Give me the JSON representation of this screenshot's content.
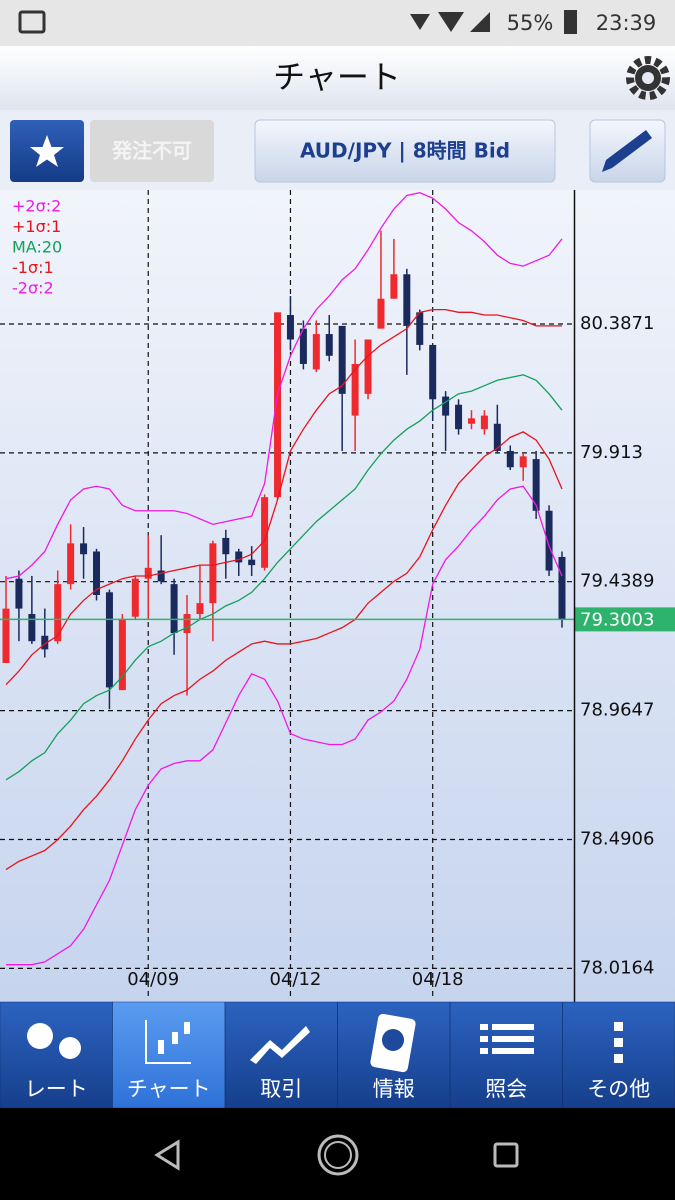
{
  "status_bar": {
    "battery": "55%",
    "time": "23:39"
  },
  "header": {
    "title": "チャート"
  },
  "toolbar": {
    "order_button": "発注不可",
    "symbol_button": "AUD/JPY | 8時間 Bid"
  },
  "chart_data": {
    "type": "candlestick",
    "categories": [
      null,
      null,
      null,
      null,
      null,
      null,
      null,
      null,
      null,
      null,
      null,
      "04/09",
      null,
      null,
      null,
      null,
      null,
      null,
      null,
      null,
      null,
      null,
      "04/12",
      null,
      null,
      null,
      null,
      null,
      null,
      null,
      null,
      null,
      null,
      "04/18",
      null,
      null,
      null,
      null,
      null,
      null,
      null,
      null,
      null,
      null
    ],
    "open": [
      79.14,
      79.45,
      79.32,
      79.24,
      79.22,
      79.43,
      79.58,
      79.55,
      79.4,
      79.04,
      79.31,
      79.45,
      79.48,
      79.43,
      79.25,
      79.32,
      79.36,
      79.6,
      79.55,
      79.52,
      79.49,
      79.75,
      80.42,
      80.37,
      80.22,
      80.35,
      80.38,
      80.05,
      80.13,
      80.37,
      80.48,
      80.57,
      80.43,
      80.31,
      80.12,
      80.09,
      80.02,
      80.0,
      80.02,
      79.92,
      79.86,
      79.89,
      79.7,
      79.53
    ],
    "high": [
      79.46,
      79.48,
      79.46,
      79.34,
      79.48,
      79.65,
      79.64,
      79.56,
      79.41,
      79.32,
      79.46,
      79.61,
      79.61,
      79.45,
      79.39,
      79.5,
      79.59,
      79.63,
      79.56,
      79.57,
      79.76,
      80.43,
      80.49,
      80.4,
      80.4,
      80.42,
      80.38,
      80.33,
      80.33,
      80.73,
      80.7,
      80.59,
      80.44,
      80.31,
      80.14,
      80.11,
      80.07,
      80.07,
      80.09,
      79.94,
      79.91,
      79.92,
      79.72,
      79.55
    ],
    "low": [
      79.14,
      79.22,
      79.21,
      79.16,
      79.21,
      79.41,
      79.45,
      79.37,
      78.97,
      79.04,
      79.3,
      79.3,
      79.43,
      79.17,
      79.02,
      79.3,
      79.22,
      79.45,
      79.46,
      79.46,
      79.48,
      79.74,
      80.29,
      80.22,
      80.21,
      80.25,
      79.92,
      79.92,
      80.11,
      80.37,
      80.48,
      80.2,
      80.29,
      80.03,
      79.92,
      79.98,
      80.0,
      79.98,
      79.91,
      79.85,
      79.81,
      79.67,
      79.46,
      79.27
    ],
    "close": [
      79.34,
      79.34,
      79.22,
      79.19,
      79.43,
      79.58,
      79.54,
      79.39,
      79.05,
      79.3,
      79.45,
      79.49,
      79.44,
      79.25,
      79.32,
      79.36,
      79.58,
      79.54,
      79.51,
      79.5,
      79.75,
      80.43,
      80.33,
      80.24,
      80.35,
      80.27,
      80.13,
      80.24,
      80.33,
      80.48,
      80.57,
      80.38,
      80.31,
      80.11,
      80.05,
      80.0,
      80.04,
      80.05,
      79.92,
      79.86,
      79.9,
      79.7,
      79.48,
      79.3
    ],
    "up_color": "#ee2a2f",
    "down_color": "#1b2a5c",
    "series": [
      {
        "name": "+2σ:2",
        "color": "#f019e6",
        "values": [
          79.45,
          79.46,
          79.5,
          79.55,
          79.65,
          79.74,
          79.78,
          79.79,
          79.78,
          79.72,
          79.7,
          79.7,
          79.7,
          79.7,
          79.69,
          79.67,
          79.65,
          79.66,
          79.67,
          79.68,
          79.8,
          80.13,
          80.27,
          80.37,
          80.44,
          80.49,
          80.55,
          80.59,
          80.66,
          80.74,
          80.81,
          80.86,
          80.87,
          80.85,
          80.81,
          80.76,
          80.73,
          80.69,
          80.64,
          80.61,
          80.6,
          80.62,
          80.64,
          80.7
        ]
      },
      {
        "name": "+1σ:1",
        "color": "#e8141e",
        "values": [
          79.06,
          79.11,
          79.17,
          79.21,
          79.24,
          79.32,
          79.37,
          79.41,
          79.43,
          79.45,
          79.46,
          79.46,
          79.47,
          79.48,
          79.49,
          79.5,
          79.5,
          79.51,
          79.52,
          79.54,
          79.59,
          79.74,
          79.92,
          80.0,
          80.07,
          80.13,
          80.16,
          80.22,
          80.27,
          80.31,
          80.34,
          80.37,
          80.43,
          80.44,
          80.44,
          80.43,
          80.43,
          80.42,
          80.42,
          80.41,
          80.4,
          80.38,
          80.38,
          80.38
        ]
      },
      {
        "name": "MA:20",
        "color": "#14a05a",
        "values": [
          78.71,
          78.74,
          78.78,
          78.81,
          78.88,
          78.93,
          78.99,
          79.02,
          79.04,
          79.09,
          79.15,
          79.2,
          79.22,
          79.25,
          79.27,
          79.3,
          79.32,
          79.35,
          79.37,
          79.4,
          79.45,
          79.51,
          79.56,
          79.61,
          79.66,
          79.7,
          79.74,
          79.78,
          79.85,
          79.91,
          79.96,
          80.0,
          80.03,
          80.07,
          80.1,
          80.13,
          80.14,
          80.16,
          80.18,
          80.19,
          80.2,
          80.18,
          80.13,
          80.07
        ]
      },
      {
        "name": "-1σ:1",
        "color": "#e8141e",
        "values": [
          78.38,
          78.41,
          78.43,
          78.45,
          78.49,
          78.54,
          78.6,
          78.65,
          78.71,
          78.78,
          78.86,
          78.93,
          78.99,
          79.02,
          79.04,
          79.08,
          79.11,
          79.15,
          79.18,
          79.21,
          79.22,
          79.21,
          79.21,
          79.22,
          79.23,
          79.25,
          79.27,
          79.3,
          79.36,
          79.4,
          79.44,
          79.47,
          79.53,
          79.63,
          79.72,
          79.8,
          79.85,
          79.9,
          79.93,
          79.97,
          79.99,
          79.96,
          79.89,
          79.78
        ]
      },
      {
        "name": "-2σ:2",
        "color": "#f019e6",
        "values": [
          78.03,
          78.03,
          78.03,
          78.04,
          78.07,
          78.1,
          78.16,
          78.25,
          78.34,
          78.47,
          78.6,
          78.69,
          78.75,
          78.77,
          78.78,
          78.78,
          78.82,
          78.92,
          79.02,
          79.1,
          79.08,
          79.0,
          78.88,
          78.86,
          78.85,
          78.84,
          78.84,
          78.86,
          78.93,
          78.96,
          79.0,
          79.08,
          79.19,
          79.43,
          79.52,
          79.57,
          79.63,
          79.68,
          79.74,
          79.78,
          79.79,
          79.72,
          79.57,
          79.46
        ]
      }
    ],
    "ylim": [
      77.9,
      80.88
    ],
    "yticks": [
      78.0164,
      78.4906,
      78.9647,
      79.4389,
      79.913,
      80.3871
    ],
    "current_price": 79.3003,
    "current_color": "#2db36b",
    "grid": true
  },
  "nav": {
    "items": [
      "レート",
      "チャート",
      "取引",
      "情報",
      "照会",
      "その他"
    ],
    "active": 1
  }
}
